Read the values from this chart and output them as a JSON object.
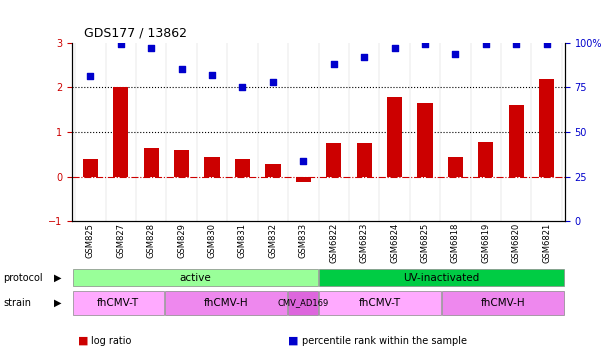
{
  "title": "GDS177 / 13862",
  "samples": [
    "GSM825",
    "GSM827",
    "GSM828",
    "GSM829",
    "GSM830",
    "GSM831",
    "GSM832",
    "GSM833",
    "GSM6822",
    "GSM6823",
    "GSM6824",
    "GSM6825",
    "GSM6818",
    "GSM6819",
    "GSM6820",
    "GSM6821"
  ],
  "log_ratio": [
    0.4,
    2.0,
    0.65,
    0.6,
    0.45,
    0.4,
    0.28,
    -0.12,
    0.75,
    0.75,
    1.78,
    1.65,
    0.45,
    0.78,
    1.6,
    2.2
  ],
  "percentile": [
    2.25,
    2.97,
    2.88,
    2.42,
    2.28,
    2.0,
    2.12,
    0.35,
    2.52,
    2.68,
    2.88,
    2.97,
    2.75,
    2.97,
    2.97,
    2.97
  ],
  "bar_color": "#cc0000",
  "dot_color": "#0000cc",
  "ylim": [
    -1,
    3
  ],
  "y2lim": [
    0,
    100
  ],
  "yticks": [
    -1,
    0,
    1,
    2,
    3
  ],
  "y2ticks": [
    0,
    25,
    50,
    75,
    100
  ],
  "y2ticklabels": [
    "0",
    "25",
    "50",
    "75",
    "100%"
  ],
  "hlines": [
    0,
    1,
    2
  ],
  "hline_styles": [
    "dashdot",
    "dotted",
    "dotted"
  ],
  "hline_colors": [
    "#cc0000",
    "#000000",
    "#000000"
  ],
  "protocol_labels": [
    {
      "text": "active",
      "start": 0,
      "end": 8,
      "color": "#99ff99"
    },
    {
      "text": "UV-inactivated",
      "start": 8,
      "end": 16,
      "color": "#00cc44"
    }
  ],
  "strain_labels": [
    {
      "text": "fhCMV-T",
      "start": 0,
      "end": 3,
      "color": "#ffaaff"
    },
    {
      "text": "fhCMV-H",
      "start": 3,
      "end": 7,
      "color": "#ee88ee"
    },
    {
      "text": "CMV_AD169",
      "start": 7,
      "end": 8,
      "color": "#dd66dd"
    },
    {
      "text": "fhCMV-T",
      "start": 8,
      "end": 12,
      "color": "#ffaaff"
    },
    {
      "text": "fhCMV-H",
      "start": 12,
      "end": 16,
      "color": "#ee88ee"
    }
  ],
  "legend_items": [
    {
      "label": "log ratio",
      "color": "#cc0000"
    },
    {
      "label": "percentile rank within the sample",
      "color": "#0000cc"
    }
  ]
}
